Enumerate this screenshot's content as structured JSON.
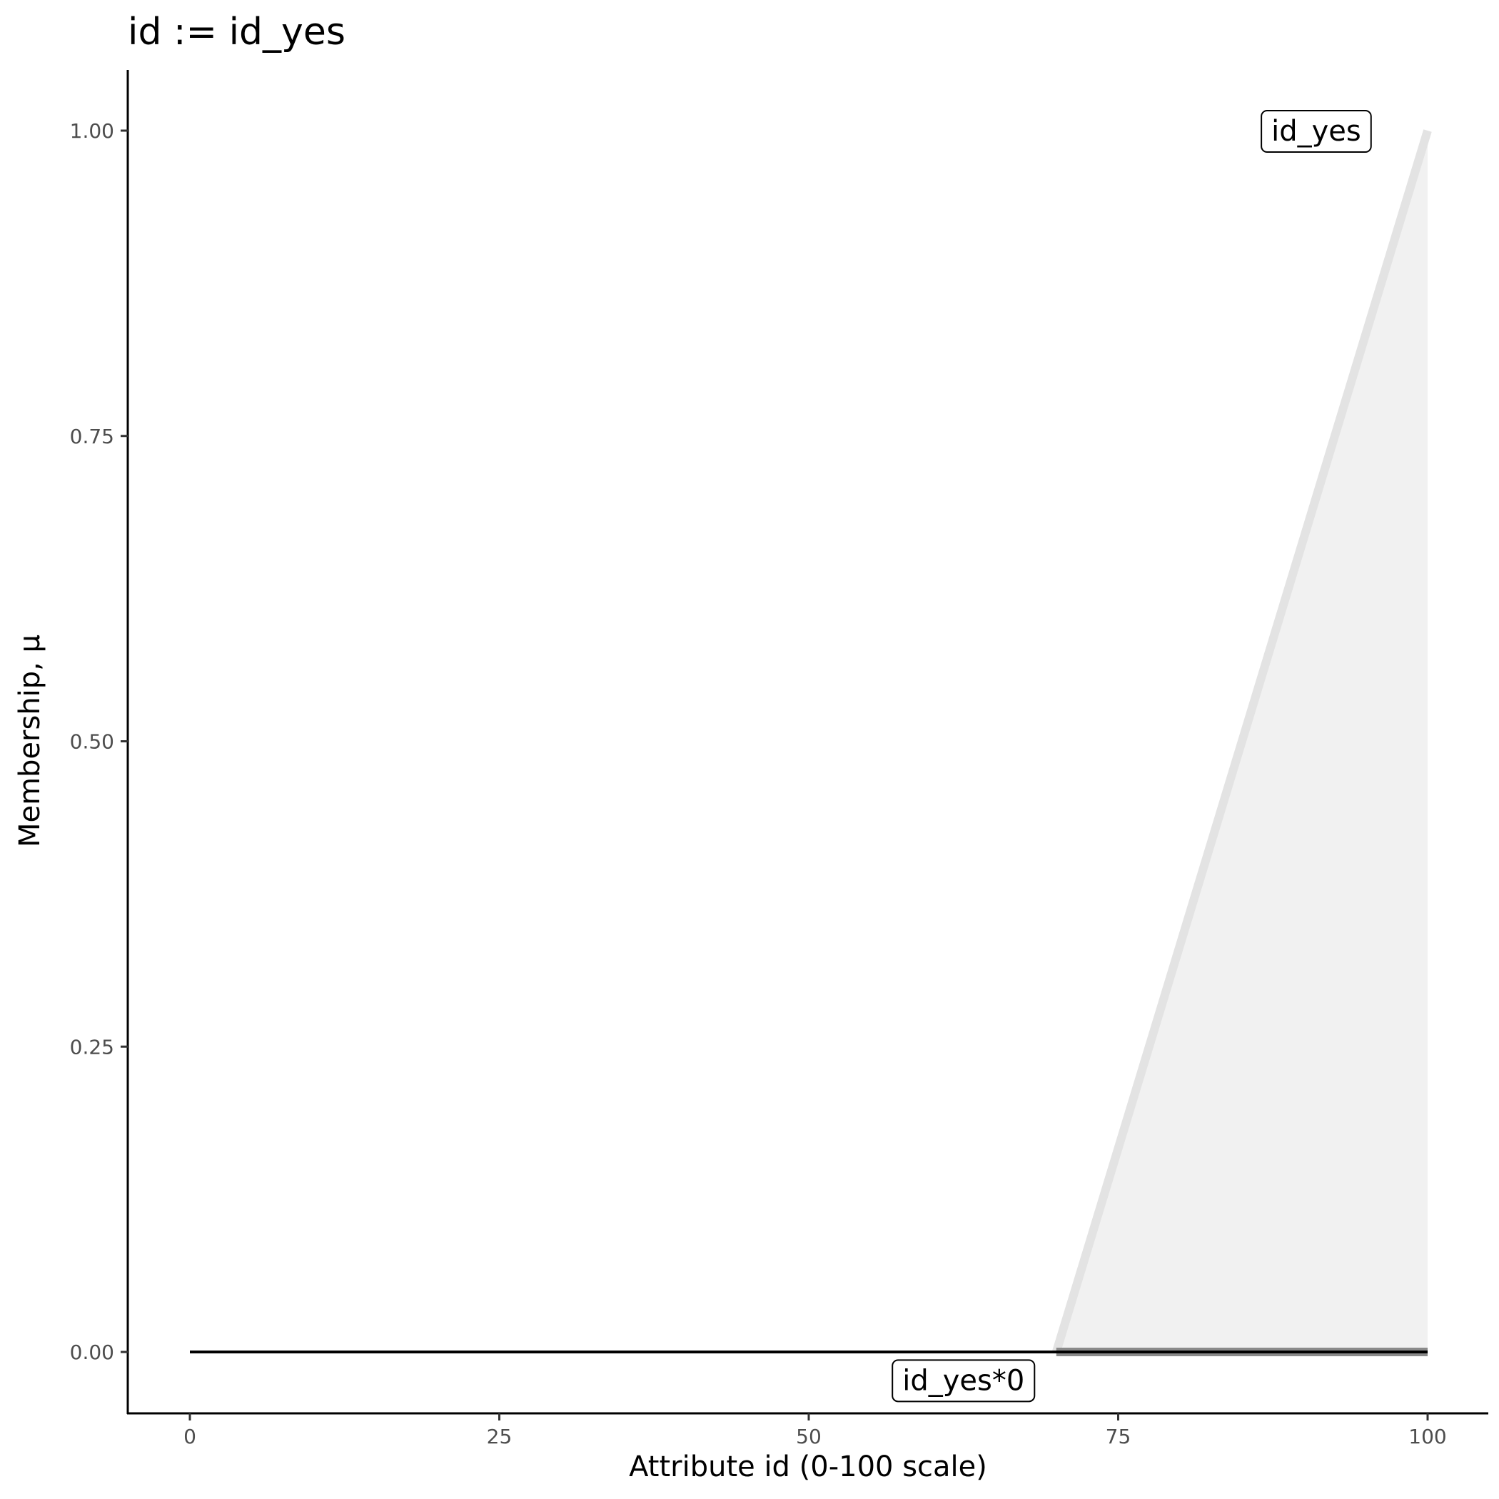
{
  "chart_data": {
    "type": "line",
    "title": "id := id_yes",
    "xlabel": "Attribute id (0-100 scale)",
    "ylabel": "Membership, μ",
    "xlim": [
      -5,
      105
    ],
    "ylim": [
      -0.05,
      1.05
    ],
    "xticks": [
      "0",
      "25",
      "50",
      "75",
      "100"
    ],
    "yticks": [
      "0.00",
      "0.25",
      "0.50",
      "0.75",
      "1.00"
    ],
    "grid": false,
    "series": [
      {
        "name": "id_yes",
        "x": [
          70,
          100
        ],
        "y": [
          0,
          1
        ],
        "color": "#e3e3e3",
        "fill": "#f1f1f1"
      },
      {
        "name": "id_yes*0",
        "x": [
          0,
          70,
          100
        ],
        "y": [
          0,
          0,
          0
        ],
        "color": "#000000"
      }
    ],
    "annotations": [
      {
        "text": "id_yes",
        "x": 91,
        "y": 1.0
      },
      {
        "text": "id_yes*0",
        "x": 62.5,
        "y": -0.023
      }
    ]
  }
}
